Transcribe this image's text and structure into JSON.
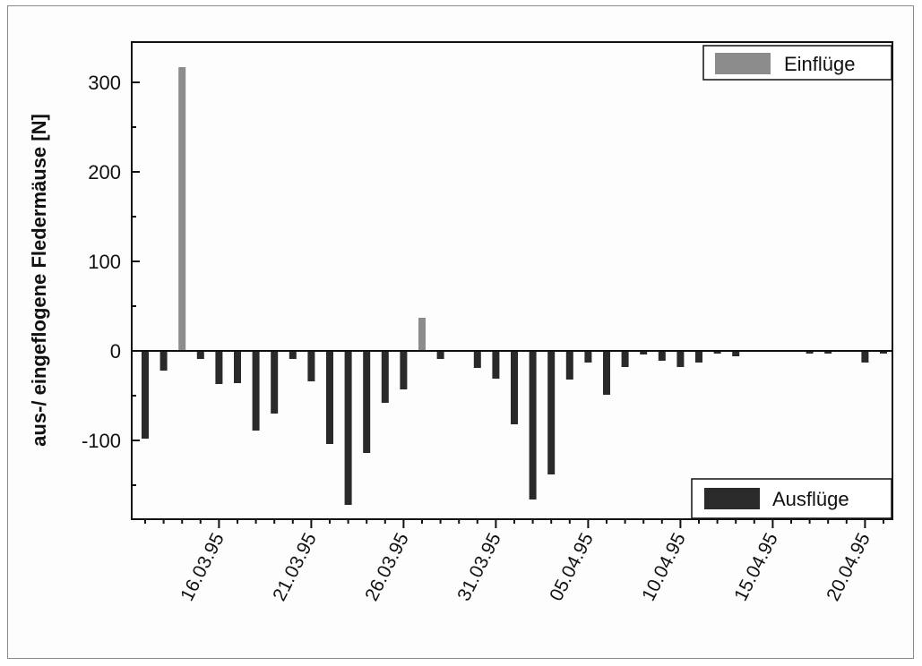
{
  "chart_data": {
    "type": "bar",
    "title": "",
    "ylabel": "aus-/ eingeflogene Fledermäuse [N]",
    "xlabel": "",
    "ylim": [
      -188,
      345
    ],
    "yticks": [
      300,
      200,
      100,
      0,
      -100
    ],
    "xticks": [
      "16.03.95",
      "21.03.95",
      "26.03.95",
      "31.03.95",
      "05.04.95",
      "10.04.95",
      "15.04.95",
      "20.04.95"
    ],
    "x_start_date": "12.03.95",
    "x_end_date": "21.04.95",
    "grid": false,
    "legend": [
      "Einflüge",
      "Ausflüge"
    ],
    "colors": {
      "Einflüge": "#8c8c8c",
      "Ausflüge": "#2a2a2a"
    },
    "series": [
      {
        "name": "Einflüge",
        "x": [
          "14.03.95",
          "27.03.95"
        ],
        "values": [
          317,
          37
        ]
      },
      {
        "name": "Ausflüge",
        "x": [
          "12.03.95",
          "13.03.95",
          "15.03.95",
          "16.03.95",
          "17.03.95",
          "18.03.95",
          "19.03.95",
          "20.03.95",
          "21.03.95",
          "22.03.95",
          "23.03.95",
          "24.03.95",
          "25.03.95",
          "26.03.95",
          "28.03.95",
          "30.03.95",
          "31.03.95",
          "01.04.95",
          "02.04.95",
          "03.04.95",
          "04.04.95",
          "05.04.95",
          "06.04.95",
          "07.04.95",
          "08.04.95",
          "09.04.95",
          "10.04.95",
          "11.04.95",
          "12.04.95",
          "13.04.95",
          "17.04.95",
          "18.04.95",
          "20.04.95",
          "21.04.95"
        ],
        "values": [
          -98,
          -22,
          -9,
          -37,
          -36,
          -89,
          -70,
          -9,
          -34,
          -104,
          -172,
          -114,
          -58,
          -43,
          -9,
          -19,
          -31,
          -82,
          -166,
          -138,
          -32,
          -13,
          -49,
          -18,
          -4,
          -11,
          -18,
          -13,
          -3,
          -6,
          -3,
          -3,
          -13,
          -3
        ]
      }
    ]
  }
}
